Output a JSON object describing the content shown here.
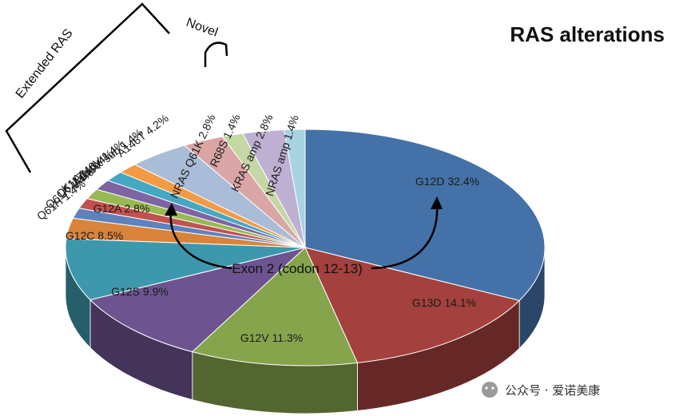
{
  "chart_data": {
    "type": "pie",
    "title": "RAS alterations",
    "slices": [
      {
        "label": "G12D 32.4%",
        "value": 32.4,
        "color": "#4471a8"
      },
      {
        "label": "G13D 14.1%",
        "value": 14.1,
        "color": "#a4403d"
      },
      {
        "label": "G12V 11.3%",
        "value": 11.3,
        "color": "#86a44c"
      },
      {
        "label": "G12S 9.9%",
        "value": 9.9,
        "color": "#6d5490"
      },
      {
        "label": "G12C 8.5%",
        "value": 8.5,
        "color": "#3d98ad"
      },
      {
        "label": "G12A 2.8%",
        "value": 2.8,
        "color": "#d9843a"
      },
      {
        "label": "Q61H 1.4%",
        "value": 1.4,
        "color": "#5d82bd"
      },
      {
        "label": "Q61K 1.4%",
        "value": 1.4,
        "color": "#c2514f"
      },
      {
        "label": "Q61L 1.4%",
        "value": 1.4,
        "color": "#99b955"
      },
      {
        "label": "K117N 1.4%",
        "value": 1.4,
        "color": "#7e64a2"
      },
      {
        "label": "A146V 1.4%",
        "value": 1.4,
        "color": "#45a8c2"
      },
      {
        "label": "A146V^sub 1.4%",
        "value": 1.4,
        "color": "#f29a45"
      },
      {
        "label": "A146T 4.2%",
        "value": 4.2,
        "color": "#a9bcd8"
      },
      {
        "label": "NRAS Q61K 2.8%",
        "value": 2.8,
        "color": "#d9a6a5"
      },
      {
        "label": "R68S 1.4%",
        "value": 1.4,
        "color": "#c4d7a4"
      },
      {
        "label": "KRAS amp 2.8%",
        "value": 2.8,
        "color": "#bdb0d2"
      },
      {
        "label": "NRAS amp 1.4%",
        "value": 1.4,
        "color": "#a8d3e0"
      }
    ],
    "groups": {
      "extended": "Extended RAS",
      "novel": "Novel",
      "exon2": "Exon 2 (codon 12-13)"
    },
    "watermark": "公众号 · 爱诺美康"
  }
}
